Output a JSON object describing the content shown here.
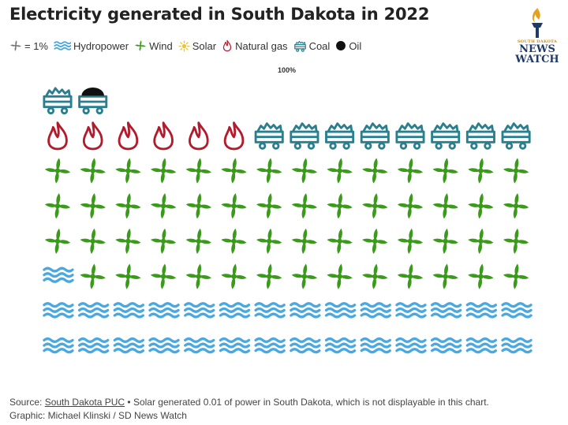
{
  "title": "Electricity generated in South Dakota in 2022",
  "legend": {
    "unit_label": "= 1%",
    "items": [
      {
        "key": "hydro",
        "label": "Hydropower",
        "icon": "waves-icon",
        "color": "#4aa8e0"
      },
      {
        "key": "wind",
        "label": "Wind",
        "icon": "turbine-icon",
        "color": "#3a9a1a"
      },
      {
        "key": "solar",
        "label": "Solar",
        "icon": "sun-icon",
        "color": "#f2c230"
      },
      {
        "key": "gas",
        "label": "Natural gas",
        "icon": "flame-icon",
        "color": "#b31b2c"
      },
      {
        "key": "coal",
        "label": "Coal",
        "icon": "coal-cart-icon",
        "color": "#2a7f8f"
      },
      {
        "key": "oil",
        "label": "Oil",
        "icon": "oil-drop-icon",
        "color": "#111111"
      }
    ]
  },
  "total_label": "100%",
  "logo": {
    "small": "SOUTH DAKOTA",
    "line1": "NEWS",
    "line2": "WATCH"
  },
  "footer": {
    "source_prefix": "Source: ",
    "source_link": "South Dakota PUC",
    "source_note": " • Solar generated 0.01 of power in South Dakota, which is not displayable in this chart.",
    "credit": "Graphic: Michael Klinski / SD News Watch"
  },
  "chart_data": {
    "type": "pictogram",
    "unit": "1%",
    "columns": 14,
    "series": [
      {
        "name": "Hydropower",
        "value": 29
      },
      {
        "name": "Wind",
        "value": 55
      },
      {
        "name": "Natural gas",
        "value": 6
      },
      {
        "name": "Coal",
        "value": 9
      },
      {
        "name": "Oil",
        "value": 1
      }
    ],
    "fill_order": [
      "Hydropower",
      "Wind",
      "Natural gas",
      "Coal",
      "Oil"
    ]
  }
}
